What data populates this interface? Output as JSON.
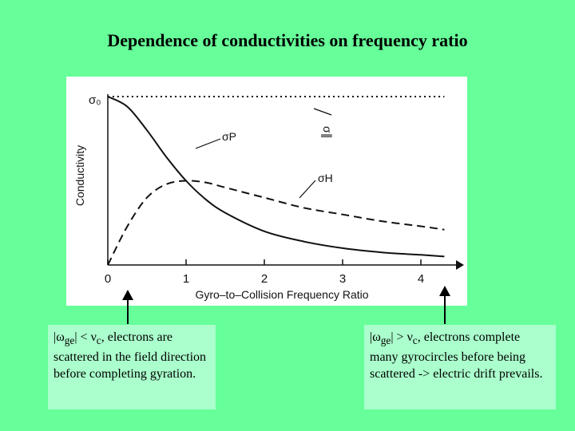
{
  "title": "Dependence of conductivities on frequency ratio",
  "chart_data": {
    "type": "line",
    "xlabel": "Gyro–to–Collision Frequency Ratio",
    "ylabel": "Conductivity",
    "xlim": [
      0,
      4.3
    ],
    "ylim": [
      0,
      1
    ],
    "x_ticks": [
      "0",
      "1",
      "2",
      "3",
      "4"
    ],
    "y_tick_label": "σ₀",
    "grid": false,
    "series": [
      {
        "name": "σ∥",
        "style": "dotted",
        "x": [
          0,
          4.3
        ],
        "y": [
          1,
          1
        ]
      },
      {
        "name": "σP",
        "style": "solid",
        "x": [
          0,
          0.25,
          0.5,
          0.75,
          1,
          1.25,
          1.5,
          2,
          2.5,
          3,
          3.5,
          4,
          4.3
        ],
        "y": [
          1,
          0.94,
          0.8,
          0.64,
          0.5,
          0.39,
          0.31,
          0.2,
          0.14,
          0.1,
          0.075,
          0.06,
          0.05
        ]
      },
      {
        "name": "σH",
        "style": "dashed",
        "x": [
          0,
          0.25,
          0.5,
          0.75,
          1,
          1.25,
          1.5,
          2,
          2.5,
          3,
          3.5,
          4,
          4.3
        ],
        "y": [
          0,
          0.23,
          0.4,
          0.48,
          0.5,
          0.49,
          0.46,
          0.4,
          0.34,
          0.3,
          0.26,
          0.23,
          0.21
        ]
      }
    ]
  },
  "notes": {
    "left": {
      "bar": "|",
      "omega": "ω",
      "omega_sub": "ge",
      "relation": "| < ",
      "nu": "ν",
      "nu_sub": "c",
      "text": ", electrons are scattered in the field direction before completing gyration."
    },
    "right": {
      "bar": "|",
      "omega": "ω",
      "omega_sub": "ge",
      "relation": "| > ",
      "nu": "ν",
      "nu_sub": "c",
      "text": ", electrons complete many gyrocircles before being scattered -> electric drift prevails."
    }
  }
}
